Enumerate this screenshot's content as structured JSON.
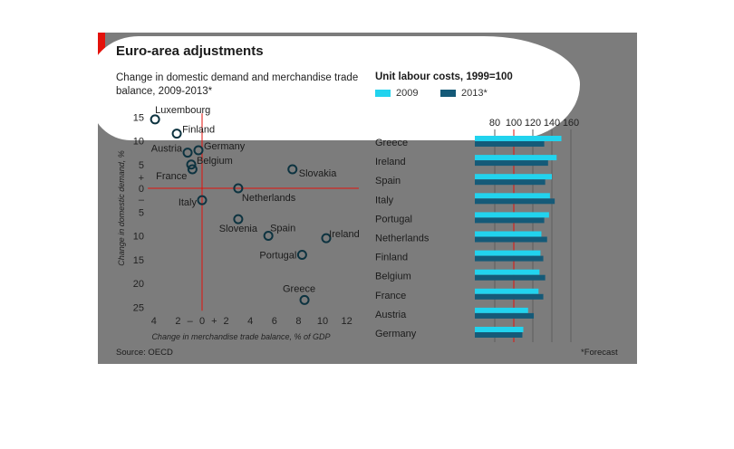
{
  "title": "Euro-area adjustments",
  "source": "Source: OECD",
  "footnote": "*Forecast",
  "colors": {
    "accent": "#e3120b",
    "series_2009": "#22d3ee",
    "series_2013": "#155a78",
    "panel": "#7c7c7c"
  },
  "chart_data": [
    {
      "type": "scatter",
      "title": "Change in domestic demand and merchandise trade balance, 2009-2013*",
      "xlabel": "Change in merchandise trade balance, % of GDP",
      "ylabel": "Change in domestic demand, %",
      "xlim": [
        -4.5,
        13
      ],
      "ylim": [
        -25,
        15
      ],
      "x_ticks": [
        "4",
        "2",
        "–",
        "0",
        "+",
        "2",
        "4",
        "6",
        "8",
        "10",
        "12"
      ],
      "y_ticks": [
        "15",
        "10",
        "5",
        "+",
        "0",
        "–",
        "5",
        "10",
        "15",
        "20",
        "25"
      ],
      "points": [
        {
          "label": "Luxembourg",
          "x": -3.9,
          "y": 14.5
        },
        {
          "label": "Finland",
          "x": -2.1,
          "y": 11.5
        },
        {
          "label": "Austria",
          "x": -1.2,
          "y": 7.5
        },
        {
          "label": "Germany",
          "x": -0.3,
          "y": 8.0
        },
        {
          "label": "Belgium",
          "x": -0.9,
          "y": 5.0
        },
        {
          "label": "France",
          "x": -0.8,
          "y": 4.0
        },
        {
          "label": "Slovakia",
          "x": 7.5,
          "y": 4.0
        },
        {
          "label": "Netherlands",
          "x": 3.0,
          "y": 0.0
        },
        {
          "label": "Italy",
          "x": 0.0,
          "y": -2.5
        },
        {
          "label": "Slovenia",
          "x": 3.0,
          "y": -6.5
        },
        {
          "label": "Spain",
          "x": 5.5,
          "y": -10.0
        },
        {
          "label": "Ireland",
          "x": 10.3,
          "y": -10.5
        },
        {
          "label": "Portugal",
          "x": 8.3,
          "y": -14.0
        },
        {
          "label": "Greece",
          "x": 8.5,
          "y": -23.5
        }
      ]
    },
    {
      "type": "bar",
      "title": "Unit labour costs, 1999=100",
      "categories": [
        "Greece",
        "Ireland",
        "Spain",
        "Italy",
        "Portugal",
        "Netherlands",
        "Finland",
        "Belgium",
        "France",
        "Austria",
        "Germany"
      ],
      "series": [
        {
          "name": "2009",
          "values": [
            150,
            145,
            140,
            138,
            137,
            129,
            128,
            127,
            126,
            115,
            110
          ]
        },
        {
          "name": "2013*",
          "values": [
            132,
            136,
            133,
            143,
            132,
            135,
            131,
            133,
            131,
            121,
            109
          ]
        }
      ],
      "xlim": [
        60,
        165
      ],
      "x_ticks": [
        80,
        100,
        120,
        140,
        160
      ]
    }
  ]
}
